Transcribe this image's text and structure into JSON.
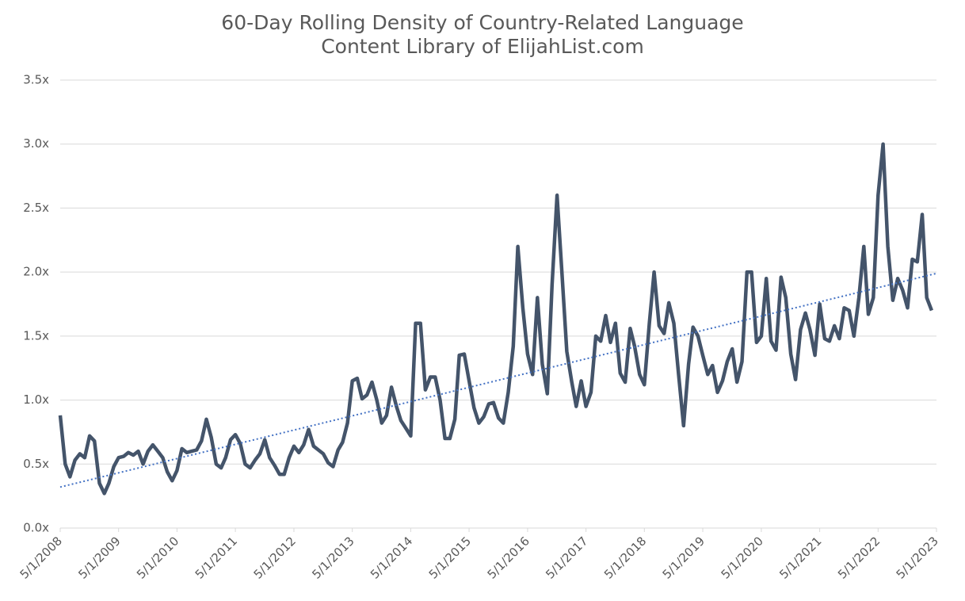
{
  "chart_data": {
    "type": "line",
    "title": "60-Day Rolling Density of Country-Related Language",
    "subtitle": "Content Library of ElijahList.com",
    "color": "#44546a",
    "x": [
      "2008-05-01",
      "2008-06-01",
      "2008-07-01",
      "2008-08-01",
      "2008-09-01",
      "2008-10-01",
      "2008-11-01",
      "2008-12-01",
      "2009-01-01",
      "2009-02-01",
      "2009-03-01",
      "2009-04-01",
      "2009-05-01",
      "2009-06-01",
      "2009-07-01",
      "2009-08-01",
      "2009-09-01",
      "2009-10-01",
      "2009-11-01",
      "2009-12-01",
      "2010-01-01",
      "2010-02-01",
      "2010-03-01",
      "2010-04-01",
      "2010-05-01",
      "2010-06-01",
      "2010-07-01",
      "2010-08-01",
      "2010-09-01",
      "2010-10-01",
      "2010-11-01",
      "2010-12-01",
      "2011-01-01",
      "2011-02-01",
      "2011-03-01",
      "2011-04-01",
      "2011-05-01",
      "2011-06-01",
      "2011-07-01",
      "2011-08-01",
      "2011-09-01",
      "2011-10-01",
      "2011-11-01",
      "2011-12-01",
      "2012-01-01",
      "2012-02-01",
      "2012-03-01",
      "2012-04-01",
      "2012-05-01",
      "2012-06-01",
      "2012-07-01",
      "2012-08-01",
      "2012-09-01",
      "2012-10-01",
      "2012-11-01",
      "2012-12-01",
      "2013-01-01",
      "2013-02-01",
      "2013-03-01",
      "2013-04-01",
      "2013-05-01",
      "2013-06-01",
      "2013-07-01",
      "2013-08-01",
      "2013-09-01",
      "2013-10-01",
      "2013-11-01",
      "2013-12-01",
      "2014-01-01",
      "2014-02-01",
      "2014-03-01",
      "2014-04-01",
      "2014-05-01",
      "2014-06-01",
      "2014-07-01",
      "2014-08-01",
      "2014-09-01",
      "2014-10-01",
      "2014-11-01",
      "2014-12-01",
      "2015-01-01",
      "2015-02-01",
      "2015-03-01",
      "2015-04-01",
      "2015-05-01",
      "2015-06-01",
      "2015-07-01",
      "2015-08-01",
      "2015-09-01",
      "2015-10-01",
      "2015-11-01",
      "2015-12-01",
      "2016-01-01",
      "2016-02-01",
      "2016-03-01",
      "2016-04-01",
      "2016-05-01",
      "2016-06-01",
      "2016-07-01",
      "2016-08-01",
      "2016-09-01",
      "2016-10-01",
      "2016-11-01",
      "2016-12-01",
      "2017-01-01",
      "2017-02-01",
      "2017-03-01",
      "2017-04-01",
      "2017-05-01",
      "2017-06-01",
      "2017-07-01",
      "2017-08-01",
      "2017-09-01",
      "2017-10-01",
      "2017-11-01",
      "2017-12-01",
      "2018-01-01",
      "2018-02-01",
      "2018-03-01",
      "2018-04-01",
      "2018-05-01",
      "2018-06-01",
      "2018-07-01",
      "2018-08-01",
      "2018-09-01",
      "2018-10-01",
      "2018-11-01",
      "2018-12-01",
      "2019-01-01",
      "2019-02-01",
      "2019-03-01",
      "2019-04-01",
      "2019-05-01",
      "2019-06-01",
      "2019-07-01",
      "2019-08-01",
      "2019-09-01",
      "2019-10-01",
      "2019-11-01",
      "2019-12-01",
      "2020-01-01",
      "2020-02-01",
      "2020-03-01",
      "2020-04-01",
      "2020-05-01",
      "2020-06-01",
      "2020-07-01",
      "2020-08-01",
      "2020-09-01",
      "2020-10-01",
      "2020-11-01",
      "2020-12-01",
      "2021-01-01",
      "2021-02-01",
      "2021-03-01",
      "2021-04-01",
      "2021-05-01",
      "2021-06-01",
      "2021-07-01",
      "2021-08-01",
      "2021-09-01",
      "2021-10-01",
      "2021-11-01",
      "2021-12-01",
      "2022-01-01",
      "2022-02-01",
      "2022-03-01",
      "2022-04-01",
      "2022-05-01",
      "2022-06-01",
      "2022-07-01",
      "2022-08-01",
      "2022-09-01",
      "2022-10-01",
      "2022-11-01",
      "2022-12-01",
      "2023-01-01",
      "2023-02-01",
      "2023-03-01",
      "2023-04-01"
    ],
    "values": [
      0.88,
      0.5,
      0.4,
      0.53,
      0.58,
      0.55,
      0.72,
      0.68,
      0.35,
      0.27,
      0.35,
      0.48,
      0.55,
      0.56,
      0.59,
      0.57,
      0.6,
      0.5,
      0.6,
      0.65,
      0.6,
      0.55,
      0.44,
      0.37,
      0.45,
      0.62,
      0.59,
      0.6,
      0.61,
      0.68,
      0.85,
      0.71,
      0.5,
      0.47,
      0.55,
      0.69,
      0.73,
      0.66,
      0.5,
      0.47,
      0.53,
      0.58,
      0.69,
      0.55,
      0.49,
      0.42,
      0.42,
      0.55,
      0.64,
      0.59,
      0.65,
      0.77,
      0.64,
      0.61,
      0.58,
      0.51,
      0.48,
      0.61,
      0.67,
      0.82,
      1.15,
      1.17,
      1.01,
      1.04,
      1.14,
      1.0,
      0.82,
      0.88,
      1.1,
      0.95,
      0.84,
      0.78,
      0.72,
      1.6,
      1.6,
      1.08,
      1.18,
      1.18,
      1.0,
      0.7,
      0.7,
      0.85,
      1.35,
      1.36,
      1.15,
      0.94,
      0.82,
      0.87,
      0.97,
      0.98,
      0.86,
      0.82,
      1.06,
      1.42,
      2.2,
      1.72,
      1.36,
      1.2,
      1.8,
      1.28,
      1.05,
      1.9,
      2.6,
      2.0,
      1.38,
      1.14,
      0.95,
      1.15,
      0.95,
      1.06,
      1.5,
      1.46,
      1.66,
      1.45,
      1.6,
      1.21,
      1.14,
      1.56,
      1.42,
      1.2,
      1.12,
      1.6,
      2.0,
      1.58,
      1.52,
      1.76,
      1.6,
      1.2,
      0.8,
      1.28,
      1.57,
      1.5,
      1.35,
      1.2,
      1.27,
      1.06,
      1.15,
      1.3,
      1.4,
      1.14,
      1.3,
      2.0,
      2.0,
      1.45,
      1.5,
      1.95,
      1.46,
      1.39,
      1.96,
      1.8,
      1.36,
      1.16,
      1.55,
      1.68,
      1.55,
      1.35,
      1.75,
      1.48,
      1.46,
      1.58,
      1.48,
      1.72,
      1.7,
      1.5,
      1.8,
      2.2,
      1.67,
      1.8,
      2.6,
      3.0,
      2.2,
      1.78,
      1.95,
      1.86,
      1.72,
      2.1,
      2.08,
      2.45,
      1.8,
      1.7
    ],
    "trendline": {
      "x": [
        "2008-05-01",
        "2023-05-01"
      ],
      "values": [
        0.32,
        1.99
      ],
      "color": "#4472c4"
    },
    "xlim": [
      "2008-05-01",
      "2023-05-01"
    ],
    "xticks": [
      {
        "value": "2008-05-01",
        "label": "5/1/2008"
      },
      {
        "value": "2009-05-01",
        "label": "5/1/2009"
      },
      {
        "value": "2010-05-01",
        "label": "5/1/2010"
      },
      {
        "value": "2011-05-01",
        "label": "5/1/2011"
      },
      {
        "value": "2012-05-01",
        "label": "5/1/2012"
      },
      {
        "value": "2013-05-01",
        "label": "5/1/2013"
      },
      {
        "value": "2014-05-01",
        "label": "5/1/2014"
      },
      {
        "value": "2015-05-01",
        "label": "5/1/2015"
      },
      {
        "value": "2016-05-01",
        "label": "5/1/2016"
      },
      {
        "value": "2017-05-01",
        "label": "5/1/2017"
      },
      {
        "value": "2018-05-01",
        "label": "5/1/2018"
      },
      {
        "value": "2019-05-01",
        "label": "5/1/2019"
      },
      {
        "value": "2020-05-01",
        "label": "5/1/2020"
      },
      {
        "value": "2021-05-01",
        "label": "5/1/2021"
      },
      {
        "value": "2022-05-01",
        "label": "5/1/2022"
      },
      {
        "value": "2023-05-01",
        "label": "5/1/2023"
      }
    ],
    "ylim": [
      0,
      3.5
    ],
    "yticks": [
      {
        "value": 0,
        "label": "0.0x"
      },
      {
        "value": 0.5,
        "label": "0.5x"
      },
      {
        "value": 1,
        "label": "1.0x"
      },
      {
        "value": 1.5,
        "label": "1.5x"
      },
      {
        "value": 2,
        "label": "2.0x"
      },
      {
        "value": 2.5,
        "label": "2.5x"
      },
      {
        "value": 3,
        "label": "3.0x"
      },
      {
        "value": 3.5,
        "label": "3.5x"
      }
    ],
    "grid": true
  }
}
